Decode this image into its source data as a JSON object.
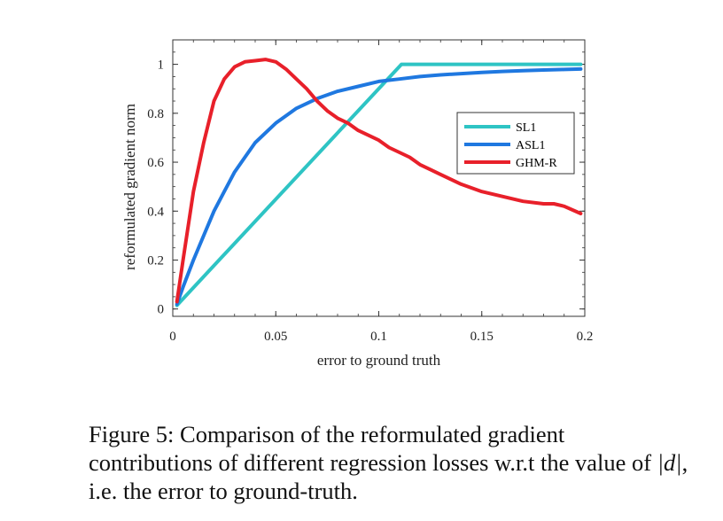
{
  "chart_data": {
    "type": "line",
    "xlabel": "error to ground truth",
    "ylabel": "reformulated gradient norm",
    "xlim": [
      0,
      0.2
    ],
    "ylim": [
      -0.03,
      1.1
    ],
    "xticks": [
      "0",
      "0.05",
      "0.1",
      "0.15",
      "0.2"
    ],
    "yticks": [
      "0",
      "0.2",
      "0.4",
      "0.6",
      "0.8",
      "1"
    ],
    "grid": false,
    "legend_position": "right-middle",
    "series": [
      {
        "name": "SL1",
        "color": "#2ec4c4",
        "x": [
          0.002,
          0.111,
          0.198
        ],
        "y": [
          0.015,
          1.0,
          1.0
        ]
      },
      {
        "name": "ASL1",
        "color": "#1f78e0",
        "x": [
          0.002,
          0.005,
          0.01,
          0.015,
          0.02,
          0.025,
          0.03,
          0.035,
          0.04,
          0.05,
          0.06,
          0.07,
          0.08,
          0.09,
          0.1,
          0.11,
          0.12,
          0.13,
          0.14,
          0.15,
          0.16,
          0.17,
          0.18,
          0.19,
          0.198
        ],
        "y": [
          0.02,
          0.09,
          0.2,
          0.3,
          0.4,
          0.48,
          0.56,
          0.62,
          0.68,
          0.76,
          0.82,
          0.86,
          0.89,
          0.91,
          0.93,
          0.94,
          0.95,
          0.957,
          0.962,
          0.967,
          0.971,
          0.974,
          0.977,
          0.979,
          0.981
        ]
      },
      {
        "name": "GHM-R",
        "color": "#e8202a",
        "x": [
          0.002,
          0.005,
          0.01,
          0.015,
          0.02,
          0.025,
          0.03,
          0.035,
          0.04,
          0.045,
          0.05,
          0.055,
          0.06,
          0.065,
          0.07,
          0.075,
          0.08,
          0.085,
          0.09,
          0.095,
          0.1,
          0.105,
          0.11,
          0.115,
          0.12,
          0.125,
          0.13,
          0.135,
          0.14,
          0.15,
          0.16,
          0.17,
          0.18,
          0.185,
          0.19,
          0.198
        ],
        "y": [
          0.03,
          0.2,
          0.48,
          0.68,
          0.85,
          0.94,
          0.99,
          1.01,
          1.015,
          1.02,
          1.01,
          0.98,
          0.94,
          0.9,
          0.85,
          0.81,
          0.78,
          0.76,
          0.73,
          0.71,
          0.69,
          0.66,
          0.64,
          0.62,
          0.59,
          0.57,
          0.55,
          0.53,
          0.51,
          0.48,
          0.46,
          0.44,
          0.43,
          0.43,
          0.42,
          0.39
        ]
      }
    ]
  },
  "caption": {
    "prefix": "Figure 5: Comparison of the reformulated gradient contributions of different regression losses w.r.t the value of ",
    "math": "|d|",
    "suffix": ", i.e. the error to ground-truth."
  }
}
